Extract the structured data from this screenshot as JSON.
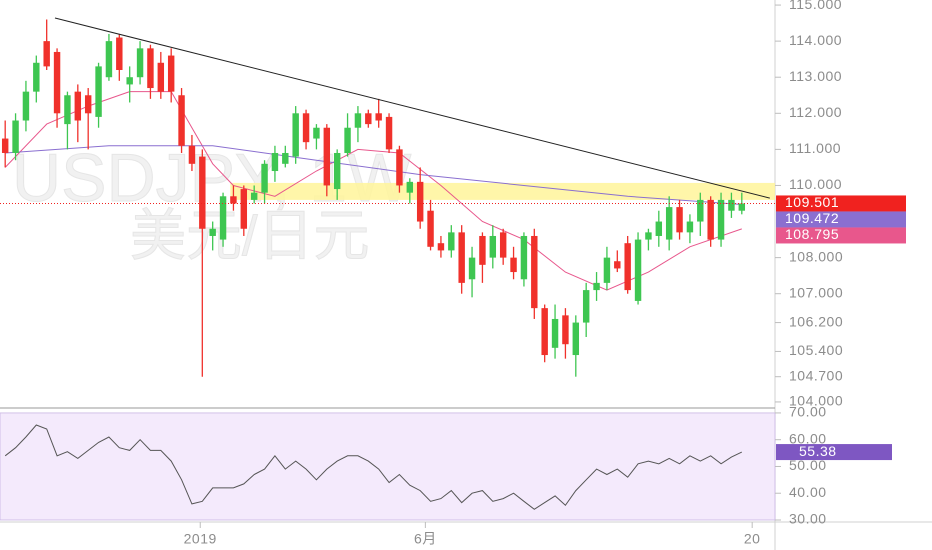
{
  "chart_data": [
    {
      "type": "candlestick",
      "watermark": "USDJPY, 1W",
      "watermark_sub": "美元/日元",
      "up_color": "#3ec651",
      "down_color": "#f0312b",
      "open": [
        111.3,
        110.9,
        111.8,
        112.6,
        114.0,
        113.7,
        111.7,
        112.6,
        112.5,
        111.9,
        113.0,
        114.1,
        112.8,
        113.0,
        113.8,
        113.4,
        113.6,
        112.5,
        111.1,
        110.8,
        108.6,
        108.5,
        109.7,
        109.9,
        109.6,
        109.8,
        110.4,
        110.6,
        110.8,
        112.0,
        111.3,
        111.6,
        109.9,
        110.9,
        111.6,
        112.0,
        112.0,
        111.9,
        111.0,
        109.8,
        110.1,
        109.3,
        108.4,
        108.2,
        108.7,
        107.4,
        108.6,
        108.0,
        108.7,
        108.0,
        107.4,
        108.6,
        106.6,
        105.5,
        106.4,
        105.3,
        106.2,
        107.1,
        107.3,
        107.9,
        108.4,
        106.8,
        108.5,
        108.6,
        108.5,
        109.4,
        108.7,
        109.0,
        109.6,
        108.5,
        109.3,
        109.3
      ],
      "high": [
        111.8,
        112.0,
        112.9,
        113.6,
        114.6,
        113.8,
        112.6,
        112.8,
        112.7,
        113.4,
        114.2,
        114.2,
        113.3,
        114.0,
        113.9,
        113.7,
        113.8,
        112.7,
        111.4,
        111.0,
        109.0,
        109.8,
        110.0,
        110.0,
        110.0,
        110.7,
        111.1,
        111.1,
        112.2,
        112.1,
        111.7,
        111.7,
        111.0,
        112.0,
        112.2,
        112.1,
        112.4,
        112.0,
        111.1,
        110.2,
        110.5,
        109.6,
        108.6,
        108.9,
        108.9,
        108.3,
        108.7,
        108.9,
        108.8,
        108.3,
        108.7,
        108.8,
        106.7,
        106.7,
        106.6,
        106.4,
        107.3,
        107.6,
        108.3,
        108.2,
        108.6,
        108.7,
        108.8,
        109.3,
        109.7,
        109.6,
        109.2,
        109.8,
        109.7,
        109.8,
        109.8,
        109.8
      ],
      "low": [
        110.5,
        110.7,
        111.5,
        112.3,
        113.2,
        111.6,
        111.0,
        111.2,
        111.0,
        111.6,
        112.9,
        112.9,
        112.3,
        112.8,
        112.4,
        112.4,
        112.3,
        110.9,
        110.4,
        104.7,
        108.2,
        108.3,
        109.3,
        108.6,
        109.5,
        109.5,
        110.1,
        110.5,
        110.6,
        111.0,
        111.0,
        109.7,
        109.6,
        110.8,
        111.2,
        111.6,
        111.6,
        110.9,
        109.8,
        109.5,
        108.8,
        108.2,
        108.0,
        108.0,
        107.0,
        106.9,
        107.3,
        107.7,
        107.8,
        107.4,
        107.2,
        106.3,
        105.1,
        105.2,
        105.2,
        104.7,
        105.8,
        106.8,
        107.1,
        107.6,
        107.0,
        106.7,
        108.2,
        108.3,
        108.2,
        108.5,
        108.4,
        108.6,
        108.3,
        108.3,
        109.1,
        109.2
      ],
      "close": [
        110.9,
        111.8,
        112.6,
        113.4,
        113.3,
        112.0,
        112.5,
        111.8,
        112.0,
        113.3,
        114.0,
        113.2,
        113.0,
        113.8,
        112.7,
        112.6,
        112.6,
        111.1,
        110.6,
        108.8,
        108.8,
        109.7,
        109.5,
        108.8,
        109.8,
        110.6,
        110.9,
        110.9,
        112.0,
        111.2,
        111.6,
        110.0,
        110.9,
        111.6,
        112.0,
        111.7,
        111.8,
        111.0,
        110.0,
        110.1,
        109.0,
        108.3,
        108.2,
        108.7,
        107.3,
        108.0,
        107.8,
        108.6,
        108.0,
        107.6,
        108.6,
        106.6,
        105.3,
        106.3,
        105.6,
        106.2,
        107.1,
        107.3,
        108.0,
        107.7,
        107.1,
        108.5,
        108.7,
        109.0,
        109.4,
        108.7,
        109.0,
        109.6,
        108.5,
        109.6,
        109.6,
        109.501
      ],
      "last_color": "#f0221f",
      "series": [
        {
          "color": "#e8578c",
          "x": [
            0,
            4,
            8,
            12,
            16,
            18,
            20,
            22,
            26,
            30,
            34,
            38,
            42,
            46,
            50,
            54,
            58,
            62,
            66,
            71
          ],
          "values": [
            110.5,
            111.7,
            112.2,
            112.6,
            112.6,
            111.6,
            110.6,
            110.0,
            109.7,
            110.4,
            111.0,
            110.9,
            110.0,
            109.0,
            108.5,
            107.6,
            107.1,
            107.6,
            108.3,
            108.795
          ]
        },
        {
          "color": "#8a6fd0",
          "x": [
            0,
            10,
            20,
            30,
            40,
            50,
            60,
            71
          ],
          "values": [
            110.9,
            111.1,
            111.1,
            110.7,
            110.3,
            110.0,
            109.7,
            109.472
          ]
        }
      ],
      "trendline": {
        "color": "#222222",
        "x": [
          4.8,
          73.7
        ],
        "values": [
          114.64,
          109.65
        ]
      },
      "zone": {
        "color": "#fff59a",
        "x": [
          21.7,
          74.2
        ],
        "y": [
          109.6,
          110.07
        ]
      },
      "xlim": [
        -0.5,
        74.2
      ],
      "ylim": [
        103.86,
        115.14
      ],
      "yticks": [
        {
          "value": 115,
          "label": "115.000"
        },
        {
          "value": 114,
          "label": "114.000"
        },
        {
          "value": 113,
          "label": "113.000"
        },
        {
          "value": 112,
          "label": "112.000"
        },
        {
          "value": 111,
          "label": "111.000"
        },
        {
          "value": 110,
          "label": "110.000"
        },
        {
          "value": 108,
          "label": "108.000"
        },
        {
          "value": 107,
          "label": "107.000"
        },
        {
          "value": 106.2,
          "label": "106.200"
        },
        {
          "value": 105.4,
          "label": "105.400"
        },
        {
          "value": 104.7,
          "label": "104.700"
        },
        {
          "value": 104,
          "label": "104.000"
        }
      ]
    },
    {
      "type": "line",
      "color": "#555555",
      "band_color": "#f4eafc",
      "tag_color": "#7e57c2",
      "values": [
        54,
        57,
        61,
        65.5,
        64,
        54,
        55.5,
        53,
        56,
        59,
        61,
        57,
        56,
        60,
        56,
        56,
        52,
        45,
        36,
        37,
        42,
        42,
        42,
        43.5,
        47,
        49,
        54,
        49,
        52,
        49,
        45,
        49,
        52,
        54,
        54,
        52,
        49,
        44,
        47,
        43,
        41,
        37,
        38,
        41,
        36.5,
        40,
        41,
        37,
        38,
        40,
        37,
        34,
        36.5,
        39,
        35.5,
        41,
        45,
        49,
        47,
        49,
        46,
        51,
        52,
        51,
        53,
        51,
        54,
        52,
        54,
        51,
        53.5,
        55.38
      ],
      "xlim": [
        -0.5,
        74.2
      ],
      "ylim": [
        29.25,
        71.1
      ],
      "yticks": [
        {
          "value": 30,
          "label": "30.00"
        },
        {
          "value": 40,
          "label": "40.00"
        },
        {
          "value": 50,
          "label": "50.00"
        },
        {
          "value": 60,
          "label": "60.00"
        },
        {
          "value": 70,
          "label": "70.00"
        }
      ],
      "xticks": [
        {
          "value": 18.8,
          "label": "2019"
        },
        {
          "value": 40.5,
          "label": "6月"
        },
        {
          "value": 72.0,
          "label": "20"
        }
      ]
    }
  ]
}
